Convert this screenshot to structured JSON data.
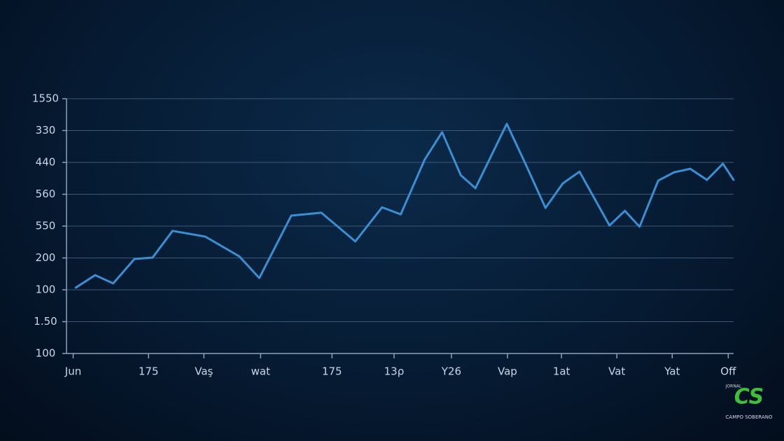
{
  "chart_data": {
    "type": "line",
    "xlim": [
      0,
      100
    ],
    "ylim": [
      0,
      8
    ],
    "xticks": [
      {
        "value": 1.0,
        "label": "Jun"
      },
      {
        "value": 12.3,
        "label": "175"
      },
      {
        "value": 20.6,
        "label": "Vaş"
      },
      {
        "value": 29.1,
        "label": "wat"
      },
      {
        "value": 39.8,
        "label": "175"
      },
      {
        "value": 49.1,
        "label": "13ρ"
      },
      {
        "value": 57.7,
        "label": "Y26"
      },
      {
        "value": 66.1,
        "label": "Vap"
      },
      {
        "value": 74.2,
        "label": "1at"
      },
      {
        "value": 82.5,
        "label": "Vat"
      },
      {
        "value": 90.8,
        "label": "Yat"
      },
      {
        "value": 99.2,
        "label": "Off"
      }
    ],
    "yticks": [
      {
        "value": 0,
        "label": "100"
      },
      {
        "value": 1,
        "label": "1.50"
      },
      {
        "value": 2,
        "label": "100"
      },
      {
        "value": 3,
        "label": "200"
      },
      {
        "value": 4,
        "label": "550"
      },
      {
        "value": 5,
        "label": "560"
      },
      {
        "value": 6,
        "label": "440"
      },
      {
        "value": 7,
        "label": "330"
      },
      {
        "value": 8,
        "label": "1550"
      }
    ],
    "grid": true,
    "series": [
      {
        "color": "#3a8fd2",
        "x": [
          1.4,
          4.3,
          7.0,
          10.2,
          12.9,
          15.9,
          20.8,
          25.9,
          28.9,
          33.7,
          38.2,
          43.3,
          47.3,
          50.1,
          53.7,
          56.3,
          59.1,
          61.3,
          66.0,
          68.9,
          71.8,
          74.4,
          76.9,
          81.4,
          83.7,
          85.9,
          88.7,
          91.1,
          93.5,
          96.0,
          98.4,
          100
        ],
        "values": [
          2.07,
          2.46,
          2.2,
          2.97,
          3.01,
          3.85,
          3.67,
          3.05,
          2.37,
          4.33,
          4.42,
          3.52,
          4.59,
          4.37,
          6.09,
          6.95,
          5.6,
          5.19,
          7.21,
          5.91,
          4.57,
          5.34,
          5.71,
          4.02,
          4.48,
          3.98,
          5.43,
          5.69,
          5.8,
          5.45,
          5.96,
          5.45
        ]
      }
    ]
  },
  "watermark": {
    "top": "JORNAL",
    "mark": "CS",
    "bottom": "CAMPO SOBERANO"
  }
}
